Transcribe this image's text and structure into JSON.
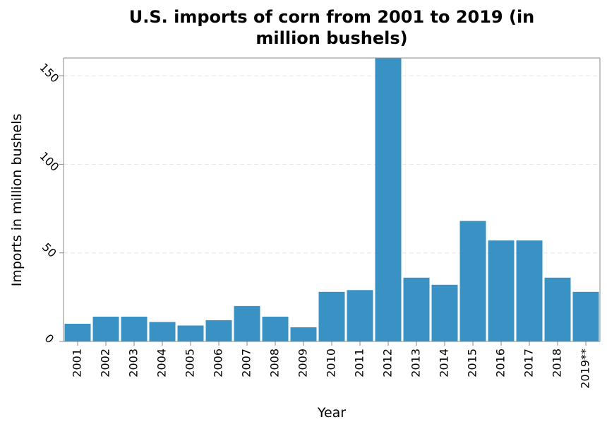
{
  "chart_data": {
    "type": "bar",
    "title_lines": [
      "U.S. imports of corn from 2001 to 2019 (in",
      "million bushels)"
    ],
    "xlabel": "Year",
    "ylabel": "Imports in million bushels",
    "categories": [
      "2001",
      "2002",
      "2003",
      "2004",
      "2005",
      "2006",
      "2007",
      "2008",
      "2009",
      "2010",
      "2011",
      "2012",
      "2013",
      "2014",
      "2015",
      "2016",
      "2017",
      "2018",
      "2019**"
    ],
    "values": [
      10,
      14,
      14,
      11,
      9,
      12,
      20,
      14,
      8,
      28,
      29,
      160,
      36,
      32,
      68,
      57,
      57,
      36,
      28
    ],
    "yticks": [
      0,
      50,
      100,
      150
    ],
    "ylim": [
      0,
      160
    ],
    "grid": true,
    "bar_color": "#3a92c4"
  }
}
